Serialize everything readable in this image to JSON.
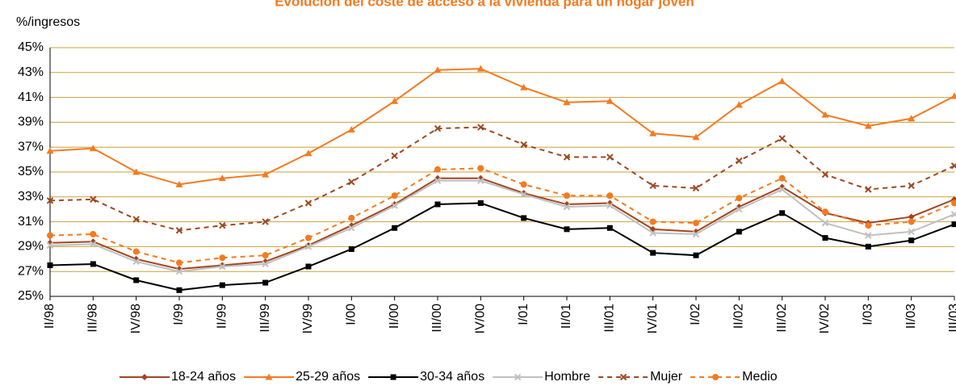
{
  "chart_data": {
    "type": "line",
    "title": "Evolución del coste de acceso a la vivienda para un hogar joven",
    "ylabel": "%/ingresos",
    "categories": [
      "II/98",
      "III/98",
      "IV/98",
      "I/99",
      "II/99",
      "III/99",
      "IV/99",
      "I/00",
      "II/00",
      "III/00",
      "IV/00",
      "I/01",
      "II/01",
      "III/01",
      "IV/01",
      "I/02",
      "II/02",
      "III/02",
      "IV/02",
      "I/03",
      "II/03",
      "III/03"
    ],
    "ylim": [
      25,
      45
    ],
    "yticks": [
      {
        "value": 25,
        "label": "25%"
      },
      {
        "value": 27,
        "label": "27%"
      },
      {
        "value": 29,
        "label": "29%"
      },
      {
        "value": 31,
        "label": "31%"
      },
      {
        "value": 33,
        "label": "33%"
      },
      {
        "value": 35,
        "label": "35%"
      },
      {
        "value": 37,
        "label": "37%"
      },
      {
        "value": 39,
        "label": "39%"
      },
      {
        "value": 41,
        "label": "41%"
      },
      {
        "value": 43,
        "label": "43%"
      },
      {
        "value": 45,
        "label": "45%"
      }
    ],
    "grid": true,
    "grid_color": "#c9a23a",
    "legend": "bottom",
    "series": [
      {
        "name": "18-24 años",
        "color": "#a3441e",
        "marker": "diamond",
        "dashed": false,
        "values": [
          29.3,
          29.4,
          28.0,
          27.2,
          27.5,
          27.8,
          29.1,
          30.7,
          32.4,
          34.5,
          34.5,
          33.3,
          32.4,
          32.5,
          30.4,
          30.2,
          32.2,
          33.8,
          31.7,
          30.9,
          31.4,
          32.8
        ]
      },
      {
        "name": "25-29 años",
        "color": "#f47a20",
        "marker": "triangle",
        "dashed": false,
        "values": [
          36.7,
          36.9,
          35.0,
          34.0,
          34.5,
          34.8,
          36.5,
          38.4,
          40.7,
          43.2,
          43.3,
          41.8,
          40.6,
          40.7,
          38.1,
          37.8,
          40.4,
          42.3,
          39.6,
          38.7,
          39.3,
          41.1
        ]
      },
      {
        "name": "30-34 años",
        "color": "#000000",
        "marker": "square",
        "dashed": false,
        "values": [
          27.5,
          27.6,
          26.3,
          25.5,
          25.9,
          26.1,
          27.4,
          28.8,
          30.5,
          32.4,
          32.5,
          31.3,
          30.4,
          30.5,
          28.5,
          28.3,
          30.2,
          31.7,
          29.7,
          29.0,
          29.5,
          30.8
        ]
      },
      {
        "name": "Hombre",
        "color": "#c0c0c0",
        "marker": "x",
        "dashed": false,
        "values": [
          29.1,
          29.2,
          27.8,
          27.0,
          27.4,
          27.6,
          29.0,
          30.5,
          32.3,
          34.3,
          34.3,
          33.2,
          32.2,
          32.3,
          30.1,
          30.0,
          32.0,
          33.6,
          30.9,
          29.9,
          30.2,
          31.6
        ]
      },
      {
        "name": "Mujer",
        "color": "#9c4a22",
        "marker": "x",
        "dashed": true,
        "values": [
          32.7,
          32.8,
          31.2,
          30.3,
          30.7,
          31.0,
          32.5,
          34.2,
          36.3,
          38.5,
          38.6,
          37.2,
          36.2,
          36.2,
          33.9,
          33.7,
          35.9,
          37.7,
          34.8,
          33.6,
          33.9,
          35.5
        ]
      },
      {
        "name": "Medio",
        "color": "#f47a20",
        "marker": "circle",
        "dashed": true,
        "values": [
          29.9,
          30.0,
          28.6,
          27.7,
          28.1,
          28.3,
          29.7,
          31.3,
          33.1,
          35.2,
          35.3,
          34.0,
          33.1,
          33.1,
          31.0,
          30.9,
          32.9,
          34.5,
          31.8,
          30.7,
          31.0,
          32.5
        ]
      }
    ]
  }
}
